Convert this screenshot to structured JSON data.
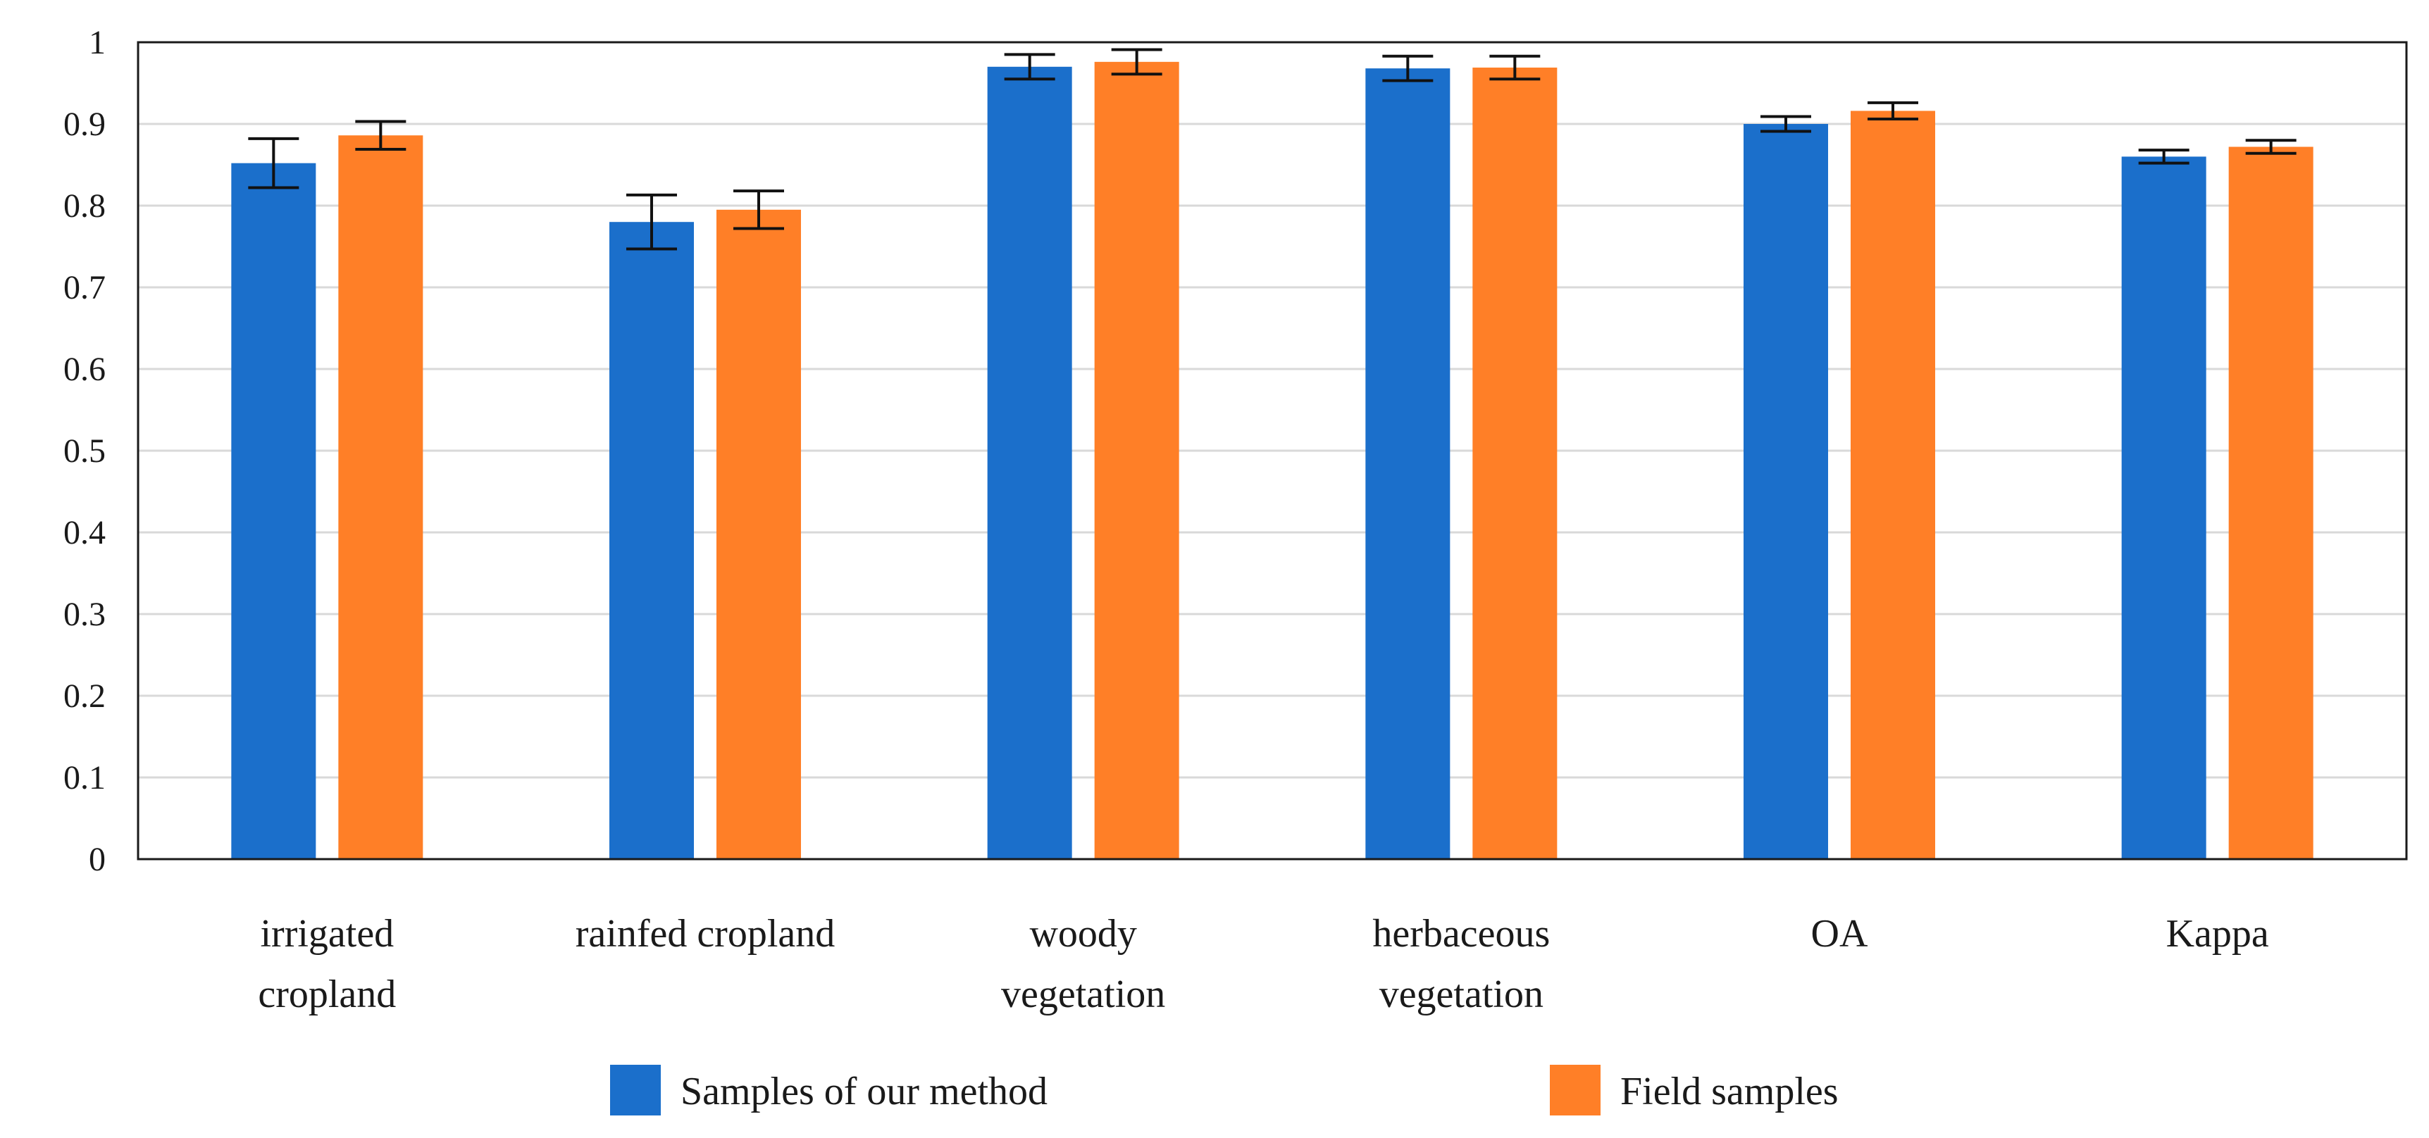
{
  "chart_data": {
    "type": "bar",
    "title": "",
    "xlabel": "",
    "ylabel": "",
    "ylim": [
      0,
      1
    ],
    "yticks": [
      "0",
      "0.1",
      "0.2",
      "0.3",
      "0.4",
      "0.5",
      "0.6",
      "0.7",
      "0.8",
      "0.9",
      "1"
    ],
    "grid": true,
    "legend_position": "bottom",
    "categories": [
      [
        "irrigated",
        "cropland"
      ],
      [
        "rainfed cropland"
      ],
      [
        "woody",
        "vegetation"
      ],
      [
        "herbaceous",
        "vegetation"
      ],
      [
        "OA"
      ],
      [
        "Kappa"
      ]
    ],
    "series": [
      {
        "name": "Samples of our method",
        "color": "#1b6fcb",
        "values": [
          0.852,
          0.78,
          0.97,
          0.968,
          0.9,
          0.86
        ],
        "errors": [
          0.03,
          0.033,
          0.015,
          0.015,
          0.009,
          0.008
        ]
      },
      {
        "name": "Field samples",
        "color": "#ff7f27",
        "values": [
          0.886,
          0.795,
          0.976,
          0.969,
          0.916,
          0.872
        ],
        "errors": [
          0.017,
          0.023,
          0.015,
          0.014,
          0.01,
          0.008
        ]
      }
    ]
  }
}
